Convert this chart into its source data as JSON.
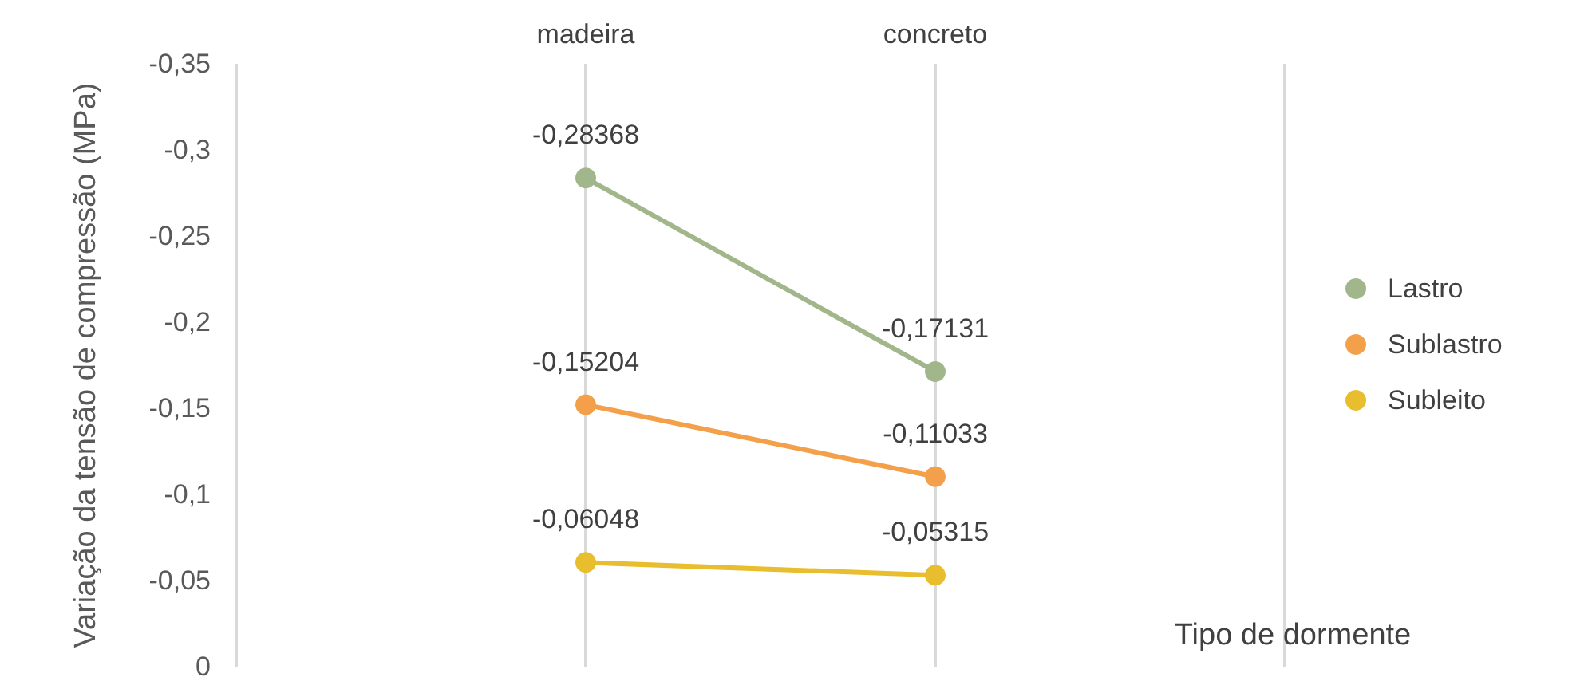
{
  "chart_data": {
    "type": "line",
    "xlabel": "Tipo de dormente",
    "ylabel": "Variação da tensão de compressão (MPa)",
    "categories": [
      null,
      "madeira",
      "concreto",
      null
    ],
    "series": [
      {
        "name": "Lastro",
        "color": "#a2b68c",
        "values": [
          null,
          -0.28368,
          -0.17131,
          null
        ],
        "value_labels": [
          null,
          "-0,28368",
          "-0,17131",
          null
        ]
      },
      {
        "name": "Sublastro",
        "color": "#f4a04a",
        "values": [
          null,
          -0.15204,
          -0.11033,
          null
        ],
        "value_labels": [
          null,
          "-0,15204",
          "-0,11033",
          null
        ]
      },
      {
        "name": "Subleito",
        "color": "#e8bd2e",
        "values": [
          null,
          -0.06048,
          -0.05315,
          null
        ],
        "value_labels": [
          null,
          "-0,06048",
          "-0,05315",
          null
        ]
      }
    ],
    "ylim": [
      0,
      -0.35
    ],
    "yticks": [
      0,
      {
        "value": -0.05,
        "label": "-0,05"
      },
      {
        "value": -0.1,
        "label": "-0,1"
      },
      {
        "value": -0.15,
        "label": "-0,15"
      },
      {
        "value": -0.2,
        "label": "-0,2"
      },
      {
        "value": -0.25,
        "label": "-0,25"
      },
      {
        "value": -0.3,
        "label": "-0,3"
      },
      {
        "value": -0.35,
        "label": "-0,35"
      }
    ],
    "grid": "x",
    "legend": "right",
    "marker": "circle",
    "line_style": "solid"
  }
}
